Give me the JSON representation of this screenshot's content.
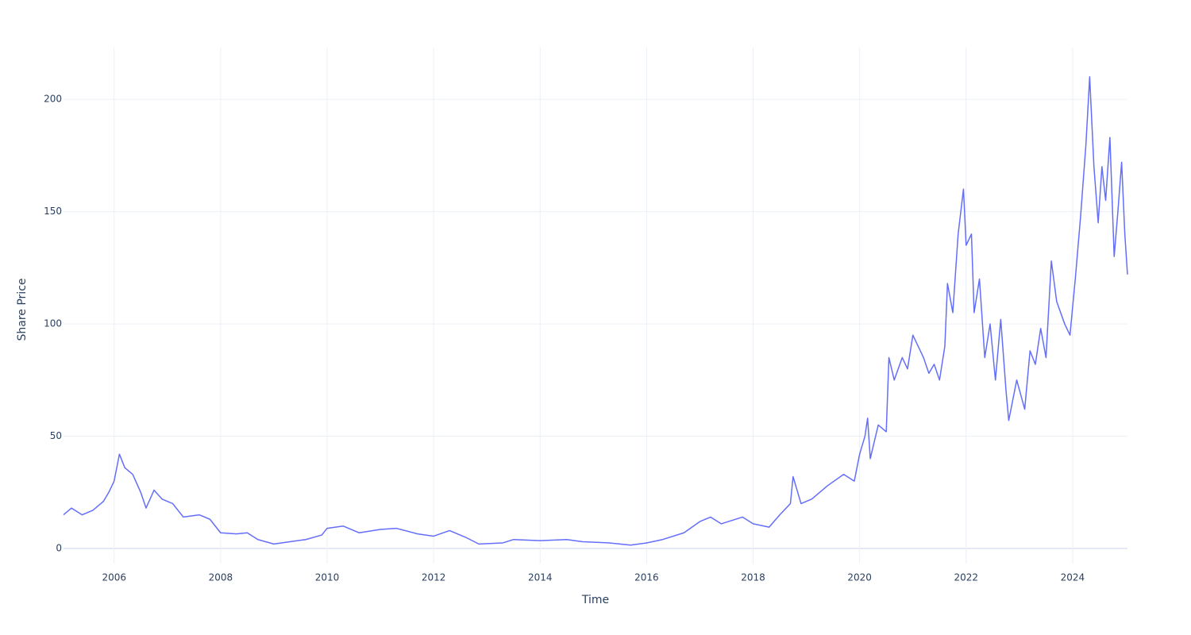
{
  "chart_data": {
    "type": "line",
    "x_label": "Time",
    "y_label": "Share Price",
    "x": [
      2005.05,
      2005.2,
      2005.4,
      2005.6,
      2005.8,
      2005.9,
      2006.0,
      2006.1,
      2006.2,
      2006.35,
      2006.5,
      2006.6,
      2006.75,
      2006.9,
      2007.1,
      2007.3,
      2007.6,
      2007.8,
      2008.0,
      2008.3,
      2008.5,
      2008.7,
      2009.0,
      2009.3,
      2009.6,
      2009.9,
      2010.0,
      2010.3,
      2010.6,
      2011.0,
      2011.3,
      2011.7,
      2012.0,
      2012.3,
      2012.6,
      2012.85,
      2013.3,
      2013.5,
      2014.0,
      2014.5,
      2014.8,
      2015.3,
      2015.7,
      2016.0,
      2016.3,
      2016.7,
      2017.0,
      2017.2,
      2017.4,
      2017.8,
      2018.0,
      2018.3,
      2018.5,
      2018.7,
      2018.75,
      2018.9,
      2019.1,
      2019.4,
      2019.7,
      2019.9,
      2020.0,
      2020.1,
      2020.15,
      2020.2,
      2020.35,
      2020.5,
      2020.55,
      2020.65,
      2020.8,
      2020.9,
      2021.0,
      2021.2,
      2021.3,
      2021.4,
      2021.5,
      2021.6,
      2021.65,
      2021.75,
      2021.85,
      2021.95,
      2022.0,
      2022.1,
      2022.15,
      2022.25,
      2022.35,
      2022.45,
      2022.55,
      2022.65,
      2022.75,
      2022.8,
      2022.95,
      2023.1,
      2023.2,
      2023.3,
      2023.4,
      2023.5,
      2023.6,
      2023.7,
      2023.85,
      2023.95,
      2024.05,
      2024.15,
      2024.25,
      2024.32,
      2024.4,
      2024.48,
      2024.55,
      2024.62,
      2024.7,
      2024.78,
      2024.85,
      2024.92,
      2024.98,
      2025.03
    ],
    "series": [
      {
        "color": "#636efa",
        "values": [
          15,
          18,
          15,
          17,
          21,
          25,
          30,
          42,
          36,
          33,
          25,
          18,
          26,
          22,
          20,
          14,
          15,
          13,
          7,
          6.5,
          7,
          4,
          2,
          3,
          4,
          6,
          9,
          10,
          7,
          8.5,
          9,
          6.5,
          5.5,
          8,
          5,
          2,
          2.5,
          4,
          3.5,
          4,
          3,
          2.5,
          1.5,
          2.5,
          4,
          7,
          12,
          14,
          11,
          14,
          11,
          9.5,
          15,
          20,
          32,
          20,
          22,
          28,
          33,
          30,
          42,
          50,
          58,
          40,
          55,
          52,
          85,
          75,
          85,
          80,
          95,
          85,
          78,
          82,
          75,
          90,
          118,
          105,
          140,
          160,
          135,
          140,
          105,
          120,
          85,
          100,
          75,
          102,
          70,
          57,
          75,
          62,
          88,
          82,
          98,
          85,
          128,
          110,
          100,
          95,
          120,
          148,
          180,
          210,
          170,
          145,
          170,
          155,
          183,
          130,
          150,
          172,
          140,
          122
        ]
      }
    ],
    "xlim": [
      2005.05,
      2025.03
    ],
    "xticks": [
      2006,
      2008,
      2010,
      2012,
      2014,
      2016,
      2018,
      2020,
      2022,
      2024
    ],
    "ylim": [
      -6.7,
      223
    ],
    "yticks": [
      0,
      50,
      100,
      150,
      200
    ],
    "grid": true
  }
}
